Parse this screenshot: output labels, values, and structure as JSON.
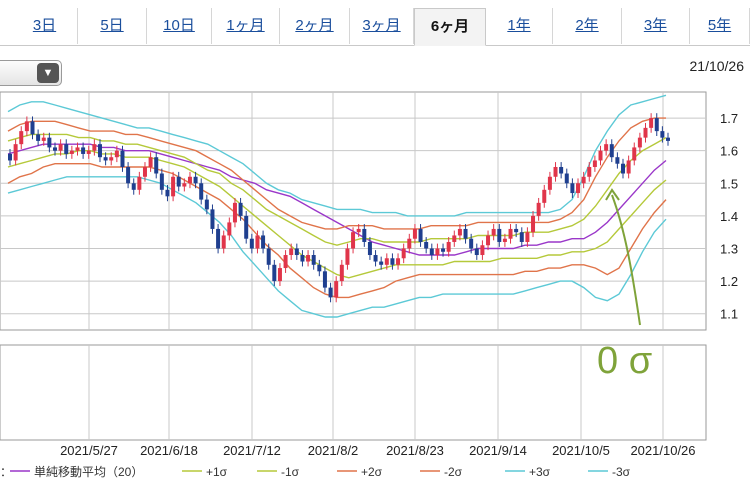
{
  "tabs": [
    {
      "label": "3日",
      "active": false
    },
    {
      "label": "5日",
      "active": false
    },
    {
      "label": "10日",
      "active": false
    },
    {
      "label": "1ヶ月",
      "active": false
    },
    {
      "label": "2ヶ月",
      "active": false
    },
    {
      "label": "3ヶ月",
      "active": false
    },
    {
      "label": "6ヶ月",
      "active": true
    },
    {
      "label": "1年",
      "active": false
    },
    {
      "label": "2年",
      "active": false
    },
    {
      "label": "3年",
      "active": false
    },
    {
      "label": "5年",
      "active": false
    }
  ],
  "dropdown": {
    "value": "",
    "icon": "chevron-down-icon"
  },
  "latest_date": "21/10/26",
  "annotation": {
    "text": "0 σ",
    "color": "#7fa33a"
  },
  "colors": {
    "up": "#e0354a",
    "down": "#1f3f8f",
    "sma": "#9a37c9",
    "s1": "#b5c93a",
    "s2": "#e0744a",
    "s3": "#5cc9d6"
  },
  "legend_prefix": "：",
  "chart_data": {
    "type": "candlestick",
    "ylim": [
      1.05,
      1.78
    ],
    "y_ticks": [
      "1.7",
      "1.6",
      "1.5",
      "1.4",
      "1.3",
      "1.2",
      "1.1"
    ],
    "x_tick_labels": [
      "2021/5/27",
      "2021/6/18",
      "2021/7/12",
      "2021/8/2",
      "2021/8/23",
      "2021/9/14",
      "2021/10/5",
      "2021/10/26"
    ],
    "close": [
      1.57,
      1.62,
      1.66,
      1.69,
      1.65,
      1.63,
      1.64,
      1.61,
      1.6,
      1.62,
      1.59,
      1.6,
      1.61,
      1.59,
      1.6,
      1.62,
      1.58,
      1.57,
      1.58,
      1.6,
      1.55,
      1.5,
      1.48,
      1.52,
      1.55,
      1.58,
      1.53,
      1.48,
      1.46,
      1.52,
      1.49,
      1.5,
      1.52,
      1.5,
      1.45,
      1.42,
      1.36,
      1.3,
      1.34,
      1.38,
      1.44,
      1.4,
      1.33,
      1.3,
      1.34,
      1.3,
      1.25,
      1.2,
      1.24,
      1.28,
      1.3,
      1.28,
      1.26,
      1.28,
      1.25,
      1.23,
      1.18,
      1.15,
      1.2,
      1.25,
      1.3,
      1.35,
      1.36,
      1.32,
      1.28,
      1.26,
      1.25,
      1.27,
      1.25,
      1.27,
      1.3,
      1.33,
      1.36,
      1.32,
      1.3,
      1.28,
      1.3,
      1.29,
      1.32,
      1.34,
      1.36,
      1.33,
      1.3,
      1.28,
      1.31,
      1.34,
      1.36,
      1.32,
      1.33,
      1.36,
      1.35,
      1.32,
      1.35,
      1.4,
      1.44,
      1.48,
      1.52,
      1.55,
      1.53,
      1.5,
      1.47,
      1.5,
      1.52,
      1.55,
      1.57,
      1.6,
      1.62,
      1.58,
      1.56,
      1.53,
      1.57,
      1.61,
      1.64,
      1.67,
      1.7,
      1.66,
      1.64,
      1.63
    ],
    "open": [
      1.59,
      1.57,
      1.62,
      1.66,
      1.69,
      1.65,
      1.63,
      1.64,
      1.61,
      1.6,
      1.62,
      1.59,
      1.6,
      1.61,
      1.59,
      1.6,
      1.62,
      1.58,
      1.57,
      1.58,
      1.6,
      1.55,
      1.5,
      1.48,
      1.52,
      1.55,
      1.58,
      1.53,
      1.48,
      1.46,
      1.52,
      1.49,
      1.5,
      1.52,
      1.5,
      1.45,
      1.42,
      1.36,
      1.3,
      1.34,
      1.38,
      1.44,
      1.4,
      1.33,
      1.3,
      1.34,
      1.3,
      1.25,
      1.2,
      1.24,
      1.28,
      1.3,
      1.28,
      1.26,
      1.28,
      1.25,
      1.23,
      1.18,
      1.15,
      1.2,
      1.25,
      1.3,
      1.35,
      1.36,
      1.32,
      1.28,
      1.26,
      1.25,
      1.27,
      1.25,
      1.27,
      1.3,
      1.33,
      1.36,
      1.32,
      1.3,
      1.28,
      1.3,
      1.29,
      1.32,
      1.34,
      1.36,
      1.33,
      1.3,
      1.28,
      1.31,
      1.34,
      1.36,
      1.32,
      1.33,
      1.36,
      1.35,
      1.32,
      1.35,
      1.4,
      1.44,
      1.48,
      1.52,
      1.55,
      1.53,
      1.5,
      1.47,
      1.5,
      1.52,
      1.55,
      1.57,
      1.6,
      1.62,
      1.58,
      1.56,
      1.53,
      1.57,
      1.61,
      1.64,
      1.67,
      1.7,
      1.66,
      1.64
    ],
    "series": [
      {
        "name": "単純移動平均（20）",
        "color": "#9a37c9",
        "values": [
          1.59,
          1.6,
          1.61,
          1.62,
          1.62,
          1.62,
          1.62,
          1.62,
          1.61,
          1.61,
          1.6,
          1.6,
          1.6,
          1.59,
          1.58,
          1.57,
          1.56,
          1.55,
          1.54,
          1.52,
          1.51,
          1.5,
          1.48,
          1.47,
          1.46,
          1.44,
          1.42,
          1.4,
          1.38,
          1.36,
          1.34,
          1.32,
          1.31,
          1.3,
          1.29,
          1.28,
          1.28,
          1.28,
          1.28,
          1.29,
          1.3,
          1.3,
          1.3,
          1.3,
          1.31,
          1.31,
          1.32,
          1.32,
          1.33,
          1.33,
          1.35,
          1.38,
          1.42,
          1.46,
          1.5,
          1.54,
          1.57
        ]
      },
      {
        "name": "+1σ",
        "color": "#b5c93a",
        "values": [
          1.63,
          1.64,
          1.65,
          1.65,
          1.65,
          1.65,
          1.64,
          1.64,
          1.63,
          1.63,
          1.62,
          1.62,
          1.61,
          1.6,
          1.59,
          1.58,
          1.56,
          1.54,
          1.53,
          1.5,
          1.48,
          1.45,
          1.42,
          1.4,
          1.38,
          1.36,
          1.34,
          1.32,
          1.31,
          1.32,
          1.33,
          1.33,
          1.32,
          1.32,
          1.32,
          1.32,
          1.33,
          1.33,
          1.33,
          1.33,
          1.34,
          1.34,
          1.34,
          1.34,
          1.35,
          1.35,
          1.35,
          1.36,
          1.37,
          1.39,
          1.43,
          1.48,
          1.53,
          1.57,
          1.6,
          1.62,
          1.64
        ]
      },
      {
        "name": "-1σ",
        "color": "#b5c93a",
        "values": [
          1.55,
          1.56,
          1.57,
          1.58,
          1.59,
          1.59,
          1.6,
          1.6,
          1.59,
          1.59,
          1.58,
          1.58,
          1.58,
          1.57,
          1.56,
          1.55,
          1.53,
          1.51,
          1.49,
          1.46,
          1.43,
          1.4,
          1.37,
          1.34,
          1.31,
          1.28,
          1.26,
          1.24,
          1.22,
          1.21,
          1.22,
          1.23,
          1.24,
          1.25,
          1.25,
          1.25,
          1.25,
          1.25,
          1.26,
          1.26,
          1.26,
          1.26,
          1.27,
          1.27,
          1.27,
          1.27,
          1.28,
          1.28,
          1.29,
          1.29,
          1.3,
          1.32,
          1.36,
          1.4,
          1.44,
          1.48,
          1.51
        ]
      },
      {
        "name": "+2σ",
        "color": "#e0744a",
        "values": [
          1.66,
          1.68,
          1.69,
          1.69,
          1.69,
          1.68,
          1.67,
          1.66,
          1.66,
          1.66,
          1.65,
          1.65,
          1.64,
          1.63,
          1.62,
          1.61,
          1.6,
          1.58,
          1.56,
          1.54,
          1.51,
          1.48,
          1.45,
          1.42,
          1.4,
          1.38,
          1.37,
          1.36,
          1.36,
          1.37,
          1.37,
          1.37,
          1.36,
          1.36,
          1.36,
          1.36,
          1.37,
          1.37,
          1.37,
          1.37,
          1.38,
          1.38,
          1.38,
          1.38,
          1.38,
          1.38,
          1.38,
          1.39,
          1.41,
          1.45,
          1.52,
          1.58,
          1.63,
          1.67,
          1.69,
          1.7,
          1.7
        ]
      },
      {
        "name": "-2σ",
        "color": "#e0744a",
        "values": [
          1.5,
          1.52,
          1.53,
          1.55,
          1.56,
          1.56,
          1.56,
          1.56,
          1.55,
          1.55,
          1.55,
          1.55,
          1.55,
          1.54,
          1.53,
          1.51,
          1.49,
          1.47,
          1.45,
          1.42,
          1.39,
          1.35,
          1.31,
          1.28,
          1.24,
          1.21,
          1.18,
          1.16,
          1.15,
          1.15,
          1.16,
          1.17,
          1.18,
          1.2,
          1.21,
          1.22,
          1.22,
          1.22,
          1.22,
          1.22,
          1.22,
          1.22,
          1.22,
          1.22,
          1.23,
          1.23,
          1.24,
          1.24,
          1.25,
          1.25,
          1.24,
          1.22,
          1.24,
          1.3,
          1.36,
          1.41,
          1.45
        ]
      },
      {
        "name": "+3σ",
        "color": "#5cc9d6",
        "values": [
          1.72,
          1.74,
          1.75,
          1.75,
          1.74,
          1.73,
          1.72,
          1.71,
          1.7,
          1.69,
          1.68,
          1.67,
          1.67,
          1.66,
          1.65,
          1.64,
          1.63,
          1.62,
          1.6,
          1.58,
          1.56,
          1.53,
          1.5,
          1.48,
          1.47,
          1.45,
          1.44,
          1.43,
          1.42,
          1.42,
          1.42,
          1.41,
          1.41,
          1.41,
          1.4,
          1.4,
          1.4,
          1.4,
          1.4,
          1.41,
          1.41,
          1.41,
          1.41,
          1.41,
          1.41,
          1.41,
          1.41,
          1.42,
          1.45,
          1.52,
          1.6,
          1.66,
          1.71,
          1.74,
          1.75,
          1.76,
          1.77
        ]
      },
      {
        "name": "-3σ",
        "color": "#5cc9d6",
        "values": [
          1.47,
          1.48,
          1.49,
          1.5,
          1.51,
          1.52,
          1.52,
          1.52,
          1.52,
          1.52,
          1.52,
          1.52,
          1.51,
          1.5,
          1.48,
          1.46,
          1.44,
          1.41,
          1.38,
          1.34,
          1.29,
          1.25,
          1.21,
          1.17,
          1.14,
          1.11,
          1.1,
          1.09,
          1.09,
          1.1,
          1.11,
          1.12,
          1.12,
          1.13,
          1.14,
          1.15,
          1.15,
          1.16,
          1.16,
          1.16,
          1.16,
          1.16,
          1.16,
          1.16,
          1.17,
          1.18,
          1.19,
          1.2,
          1.2,
          1.18,
          1.15,
          1.14,
          1.16,
          1.22,
          1.29,
          1.35,
          1.39
        ]
      }
    ]
  }
}
